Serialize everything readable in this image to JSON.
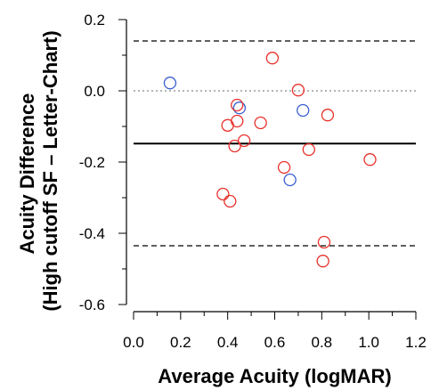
{
  "chart_data": {
    "type": "scatter",
    "xlabel": "Average Acuity (logMAR)",
    "ylabel_line1": "Acuity Difference",
    "ylabel_line2": "(High cutoff SF – Letter-Chart)",
    "xlim": [
      0.0,
      1.2
    ],
    "ylim": [
      -0.6,
      0.2
    ],
    "x_ticks": [
      "0.0",
      "0.2",
      "0.4",
      "0.6",
      "0.8",
      "1.0",
      "1.2"
    ],
    "y_ticks": [
      "0.2",
      "0.0",
      "-0.2",
      "-0.4",
      "-0.6"
    ],
    "grid": false,
    "colors": {
      "red": "#e8302a",
      "blue": "#3a5fd0"
    },
    "reference_lines": [
      {
        "y": 0.14,
        "style": "dashed"
      },
      {
        "y": 0.0,
        "style": "dotted"
      },
      {
        "y": -0.148,
        "style": "solid"
      },
      {
        "y": -0.435,
        "style": "dashed"
      }
    ],
    "series": [
      {
        "color": "#3a5fd0",
        "points": [
          [
            0.155,
            0.022
          ],
          [
            0.45,
            -0.048
          ],
          [
            0.72,
            -0.055
          ],
          [
            0.665,
            -0.25
          ]
        ]
      },
      {
        "color": "#e8302a",
        "points": [
          [
            0.59,
            0.092
          ],
          [
            0.7,
            0.002
          ],
          [
            0.825,
            -0.068
          ],
          [
            0.44,
            -0.04
          ],
          [
            0.54,
            -0.09
          ],
          [
            0.44,
            -0.085
          ],
          [
            0.4,
            -0.097
          ],
          [
            0.47,
            -0.14
          ],
          [
            0.43,
            -0.155
          ],
          [
            0.745,
            -0.165
          ],
          [
            0.64,
            -0.215
          ],
          [
            1.005,
            -0.193
          ],
          [
            0.38,
            -0.29
          ],
          [
            0.41,
            -0.31
          ],
          [
            0.81,
            -0.425
          ],
          [
            0.805,
            -0.478
          ]
        ]
      }
    ]
  }
}
